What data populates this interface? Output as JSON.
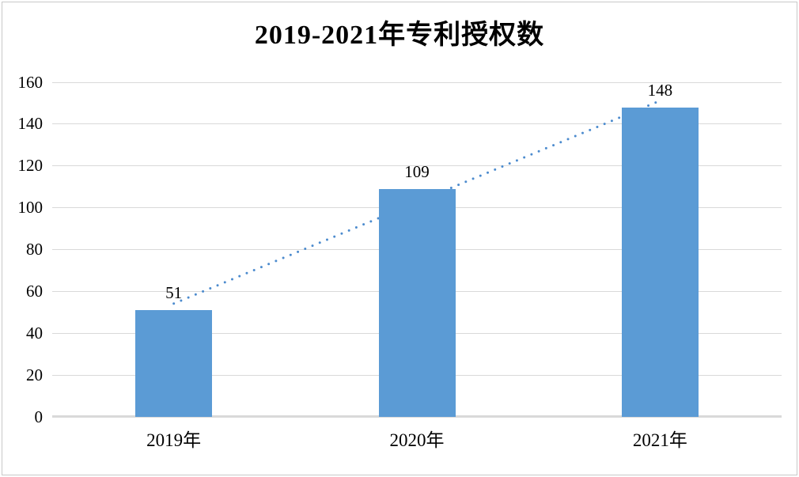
{
  "chart_data": {
    "type": "bar",
    "title": "2019-2021年专利授权数",
    "categories": [
      "2019年",
      "2020年",
      "2021年"
    ],
    "values": [
      51,
      109,
      148
    ],
    "data_labels": [
      "51",
      "109",
      "148"
    ],
    "xlabel": "",
    "ylabel": "",
    "ylim": [
      0,
      160
    ],
    "ytick_step": 20,
    "yticks": [
      0,
      20,
      40,
      60,
      80,
      100,
      120,
      140,
      160
    ],
    "grid": true,
    "legend": "none",
    "trendline": {
      "type": "linear",
      "style": "dotted"
    }
  },
  "colors": {
    "bar": "#5B9BD5",
    "trendline": "#4C8BCE",
    "gridline": "#D9D9D9",
    "axis_line": "#D9D9D9",
    "text": "#000000",
    "frame_border": "#C9C9C9",
    "background": "#FFFFFF"
  }
}
